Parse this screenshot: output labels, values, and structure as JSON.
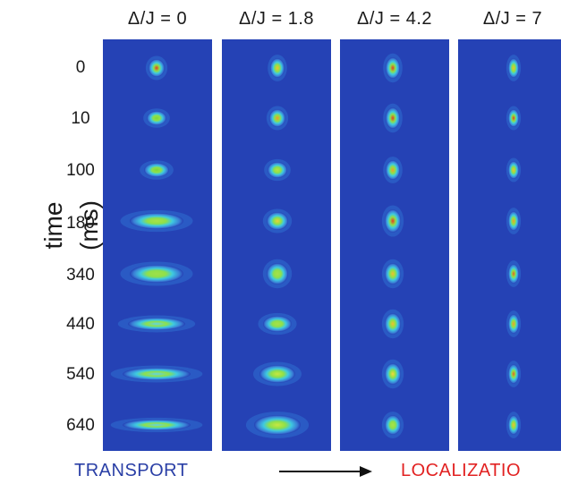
{
  "columns": [
    {
      "label": "Δ/J = 0"
    },
    {
      "label": "Δ/J = 1.8"
    },
    {
      "label": "Δ/J = 4.2"
    },
    {
      "label": "Δ/J = 7"
    }
  ],
  "y_axis_title": "time (ms)",
  "times": [
    "0",
    "10",
    "100",
    "180",
    "340",
    "440",
    "540",
    "640"
  ],
  "bottom": {
    "left_label": "TRANSPORT",
    "right_label": "LOCALIZATIO"
  },
  "colors": {
    "background": "#2542b5",
    "transport": "#2a3fa6",
    "localization": "#e22222"
  }
}
